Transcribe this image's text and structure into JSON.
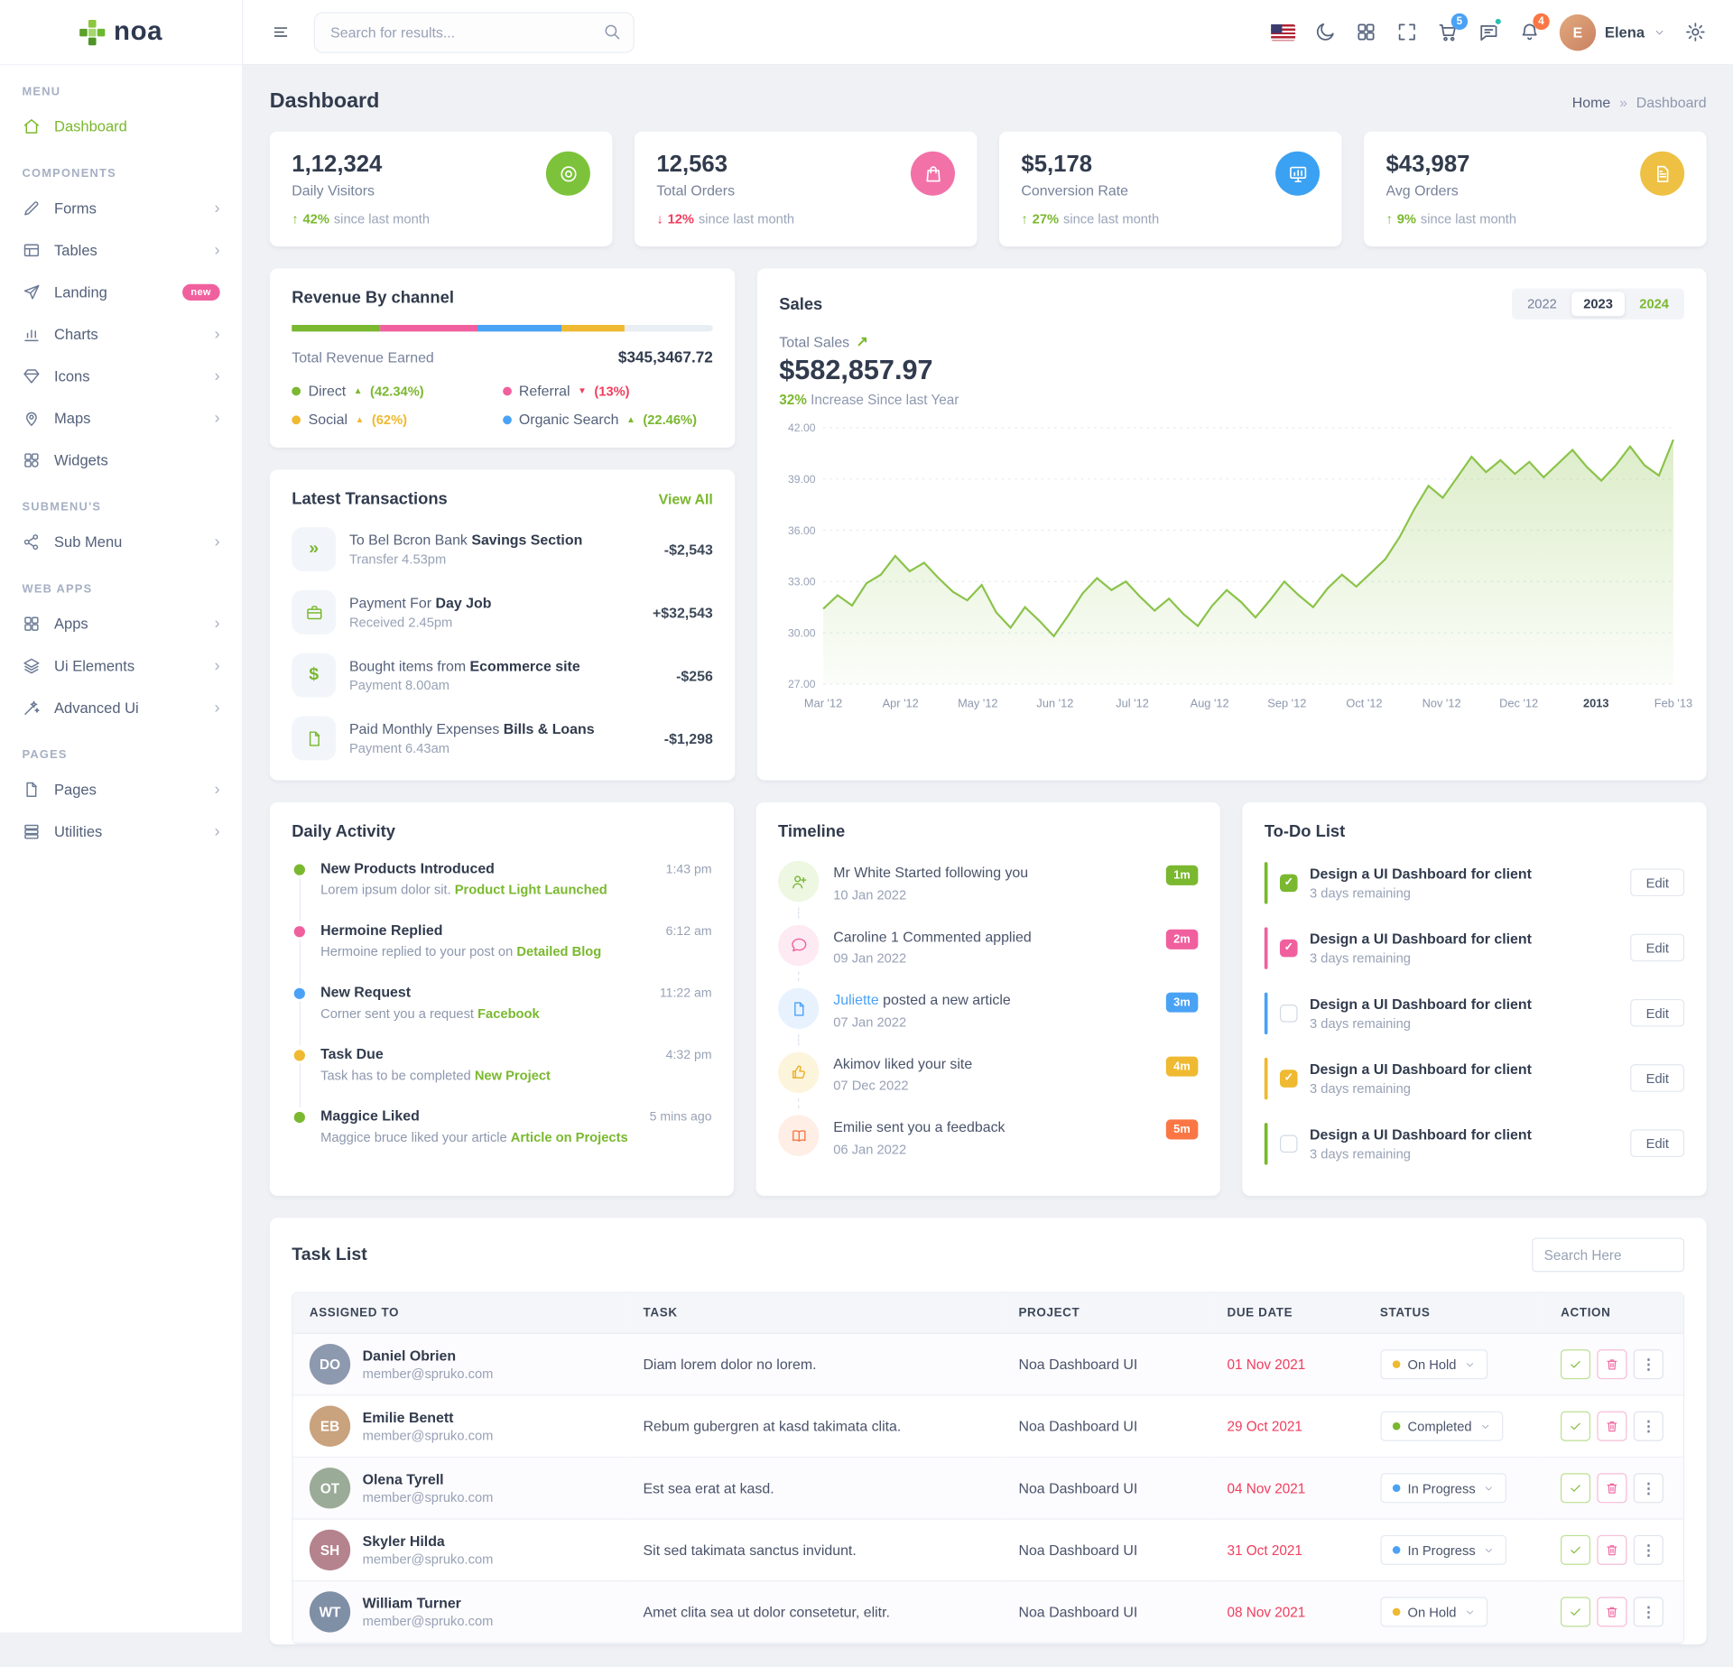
{
  "theme": {
    "green": "#7ab82f",
    "pink": "#f0609e",
    "blue": "#4aa2f5",
    "yellow": "#efb931",
    "orange": "#fa7745",
    "red": "#ef3e5e"
  },
  "brand": {
    "name": "noa"
  },
  "header": {
    "search_placeholder": "Search for results...",
    "cart_badge": "5",
    "bell_badge": "4",
    "user": {
      "name": "Elena"
    }
  },
  "sidebar": {
    "sections": [
      {
        "title": "MENU",
        "items": [
          {
            "label": "Dashboard"
          }
        ]
      },
      {
        "title": "COMPONENTS",
        "items": [
          {
            "label": "Forms"
          },
          {
            "label": "Tables"
          },
          {
            "label": "Landing",
            "badge": "new"
          },
          {
            "label": "Charts"
          },
          {
            "label": "Icons"
          },
          {
            "label": "Maps"
          },
          {
            "label": "Widgets"
          }
        ]
      },
      {
        "title": "SUBMENU'S",
        "items": [
          {
            "label": "Sub Menu"
          }
        ]
      },
      {
        "title": "WEB APPS",
        "items": [
          {
            "label": "Apps"
          },
          {
            "label": "Ui Elements"
          },
          {
            "label": "Advanced Ui"
          }
        ]
      },
      {
        "title": "PAGES",
        "items": [
          {
            "label": "Pages"
          },
          {
            "label": "Utilities"
          }
        ]
      }
    ]
  },
  "page": {
    "title": "Dashboard",
    "breadcrumb_home": "Home",
    "breadcrumb_current": "Dashboard"
  },
  "stats": [
    {
      "value": "1,12,324",
      "label": "Daily Visitors",
      "delta": "42%",
      "direction": "up",
      "note": "since last month",
      "color": "green"
    },
    {
      "value": "12,563",
      "label": "Total Orders",
      "delta": "12%",
      "direction": "down",
      "note": "since last month",
      "color": "pink"
    },
    {
      "value": "$5,178",
      "label": "Conversion Rate",
      "delta": "27%",
      "direction": "up",
      "note": "since last month",
      "color": "blue"
    },
    {
      "value": "$43,987",
      "label": "Avg Orders",
      "delta": "9%",
      "direction": "up",
      "note": "since last month",
      "color": "yellow"
    }
  ],
  "revenue": {
    "title": "Revenue By channel",
    "total_label": "Total Revenue Earned",
    "total_value": "$345,3467.72",
    "segments": [
      {
        "color": "green",
        "pct": 21
      },
      {
        "color": "pink",
        "pct": 23
      },
      {
        "color": "blue",
        "pct": 20
      },
      {
        "color": "yellow",
        "pct": 15
      }
    ],
    "legend": [
      {
        "label": "Direct",
        "pct": "(42.34%)",
        "dot": "green",
        "trend": "up"
      },
      {
        "label": "Referral",
        "pct": "(13%)",
        "dot": "pink",
        "trend": "down"
      },
      {
        "label": "Social",
        "pct": "(62%)",
        "dot": "yellow",
        "trend": "up"
      },
      {
        "label": "Organic Search",
        "pct": "(22.46%)",
        "dot": "blue",
        "trend": "up"
      }
    ]
  },
  "sales": {
    "title": "Sales",
    "years": [
      "2022",
      "2023",
      "2024"
    ],
    "active_year": "2023",
    "total_label": "Total Sales",
    "total_value": "$582,857.97",
    "subtitle_highlight": "32%",
    "subtitle_rest": " Increase Since last Year"
  },
  "chart_data": {
    "type": "area",
    "title": "Sales",
    "xlabel": "",
    "ylabel": "",
    "x": [
      "Mar '12",
      "Apr '12",
      "May '12",
      "Jun '12",
      "Jul '12",
      "Aug '12",
      "Sep '12",
      "Oct '12",
      "Nov '12",
      "Dec '12",
      "2013",
      "Feb '13"
    ],
    "yticks": [
      27,
      30,
      33,
      36,
      39,
      42
    ],
    "ylim": [
      27,
      42
    ],
    "grid": "dotted-horizontal",
    "legend_position": "none",
    "line_color": "#8bc34a",
    "values": [
      31.4,
      32.2,
      31.6,
      32.9,
      33.4,
      34.5,
      33.6,
      34.1,
      33.2,
      32.4,
      31.9,
      32.8,
      31.2,
      30.3,
      31.5,
      30.7,
      29.8,
      31.0,
      32.3,
      33.2,
      32.5,
      33.0,
      32.1,
      31.3,
      32.0,
      31.1,
      30.4,
      31.6,
      32.5,
      31.8,
      30.9,
      31.9,
      33.0,
      32.2,
      31.5,
      32.6,
      33.4,
      32.7,
      33.5,
      34.3,
      35.6,
      37.2,
      38.6,
      37.9,
      39.1,
      40.3,
      39.4,
      40.1,
      39.3,
      40.0,
      39.1,
      39.9,
      40.7,
      39.7,
      38.9,
      39.8,
      40.9,
      39.8,
      39.2,
      41.3
    ]
  },
  "transactions": {
    "title": "Latest Transactions",
    "view_all": "View All",
    "items": [
      {
        "text": "To Bel Bcron Bank",
        "text_bold": "Savings Section",
        "sub": "Transfer 4.53pm",
        "amount": "-$2,543"
      },
      {
        "text": "Payment For",
        "text_bold": "Day Job",
        "sub": "Received 2.45pm",
        "amount": "+$32,543"
      },
      {
        "text": "Bought items from",
        "text_bold": "Ecommerce site",
        "sub": "Payment 8.00am",
        "amount": "-$256"
      },
      {
        "text": "Paid Monthly Expenses",
        "text_bold": "Bills & Loans",
        "sub": "Payment 6.43am",
        "amount": "-$1,298"
      }
    ]
  },
  "daily_activity": {
    "title": "Daily Activity",
    "items": [
      {
        "color": "green",
        "title": "New Products Introduced",
        "time": "1:43 pm",
        "text": "Lorem ipsum dolor sit. ",
        "link": "Product Light Launched"
      },
      {
        "color": "pink",
        "title": "Hermoine Replied",
        "time": "6:12 am",
        "text": "Hermoine replied to your post on ",
        "link": "Detailed Blog"
      },
      {
        "color": "blue",
        "title": "New Request",
        "time": "11:22 am",
        "text": "Corner sent you a request ",
        "link": "Facebook"
      },
      {
        "color": "yellow",
        "title": "Task Due",
        "time": "4:32 pm",
        "text": "Task has to be completed ",
        "link": "New Project"
      },
      {
        "color": "green",
        "title": "Maggice Liked",
        "time": "5 mins ago",
        "text": "Maggice bruce liked your article ",
        "link": "Article on Projects"
      }
    ]
  },
  "timeline": {
    "title": "Timeline",
    "items": [
      {
        "color": "green",
        "link": "",
        "text": "Mr White Started following you",
        "date": "10 Jan 2022",
        "badge": "1m"
      },
      {
        "color": "pink",
        "link": "",
        "text": "Caroline 1 Commented applied",
        "date": "09 Jan 2022",
        "badge": "2m"
      },
      {
        "color": "blue",
        "link": "Juliette",
        "text": " posted a new article",
        "date": "07 Jan 2022",
        "badge": "3m"
      },
      {
        "color": "yellow",
        "link": "",
        "text": "Akimov liked your site",
        "date": "07 Dec 2022",
        "badge": "4m"
      },
      {
        "color": "orange",
        "link": "",
        "text": "Emilie sent you a feedback",
        "date": "06 Jan 2022",
        "badge": "5m"
      }
    ]
  },
  "todo": {
    "title": "To-Do List",
    "edit_label": "Edit",
    "items": [
      {
        "color": "green",
        "checked": true,
        "title": "Design a UI Dashboard for client",
        "sub": "3 days remaining"
      },
      {
        "color": "pink",
        "checked": true,
        "title": "Design a UI Dashboard for client",
        "sub": "3 days remaining"
      },
      {
        "color": "blue",
        "checked": false,
        "title": "Design a UI Dashboard for client",
        "sub": "3 days remaining"
      },
      {
        "color": "yellow",
        "checked": true,
        "title": "Design a UI Dashboard for client",
        "sub": "3 days remaining"
      },
      {
        "color": "green",
        "checked": false,
        "title": "Design a UI Dashboard for client",
        "sub": "3 days remaining"
      }
    ]
  },
  "task_list": {
    "title": "Task List",
    "search_placeholder": "Search Here",
    "columns": [
      "ASSIGNED TO",
      "TASK",
      "PROJECT",
      "DUE DATE",
      "STATUS",
      "ACTION"
    ],
    "rows": [
      {
        "name": "Daniel Obrien",
        "email": "member@spruko.com",
        "task": "Diam lorem dolor no lorem.",
        "project": "Noa Dashboard UI",
        "due": "01 Nov 2021",
        "status": "On Hold",
        "status_color": "yellow"
      },
      {
        "name": "Emilie Benett",
        "email": "member@spruko.com",
        "task": "Rebum gubergren at kasd takimata clita.",
        "project": "Noa Dashboard UI",
        "due": "29 Oct 2021",
        "status": "Completed",
        "status_color": "green"
      },
      {
        "name": "Olena Tyrell",
        "email": "member@spruko.com",
        "task": "Est sea erat at kasd.",
        "project": "Noa Dashboard UI",
        "due": "04 Nov 2021",
        "status": "In Progress",
        "status_color": "blue"
      },
      {
        "name": "Skyler Hilda",
        "email": "member@spruko.com",
        "task": "Sit sed takimata sanctus invidunt.",
        "project": "Noa Dashboard UI",
        "due": "31 Oct 2021",
        "status": "In Progress",
        "status_color": "blue"
      },
      {
        "name": "William Turner",
        "email": "member@spruko.com",
        "task": "Amet clita sea ut dolor consetetur, elitr.",
        "project": "Noa Dashboard UI",
        "due": "08 Nov 2021",
        "status": "On Hold",
        "status_color": "yellow"
      }
    ]
  }
}
